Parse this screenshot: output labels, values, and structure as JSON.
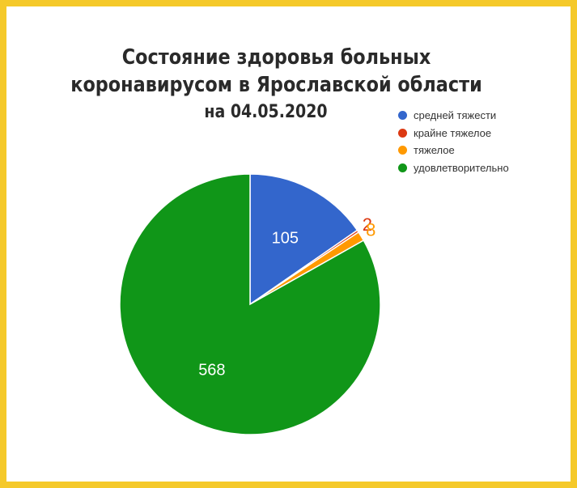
{
  "chart_data": {
    "type": "pie",
    "title": "Состояние здоровья больных",
    "title_line2": "коронавирусом в Ярославской области",
    "subtitle": "на 04.05.2020",
    "legend_position": "top-right",
    "slices": [
      {
        "label": "средней тяжести",
        "value": 105,
        "color": "#3366CC"
      },
      {
        "label": "крайне тяжелое",
        "value": 2,
        "color": "#DC3912"
      },
      {
        "label": "тяжелое",
        "value": 8,
        "color": "#FF9900"
      },
      {
        "label": "удовлетворительно",
        "value": 568,
        "color": "#109618"
      }
    ]
  }
}
